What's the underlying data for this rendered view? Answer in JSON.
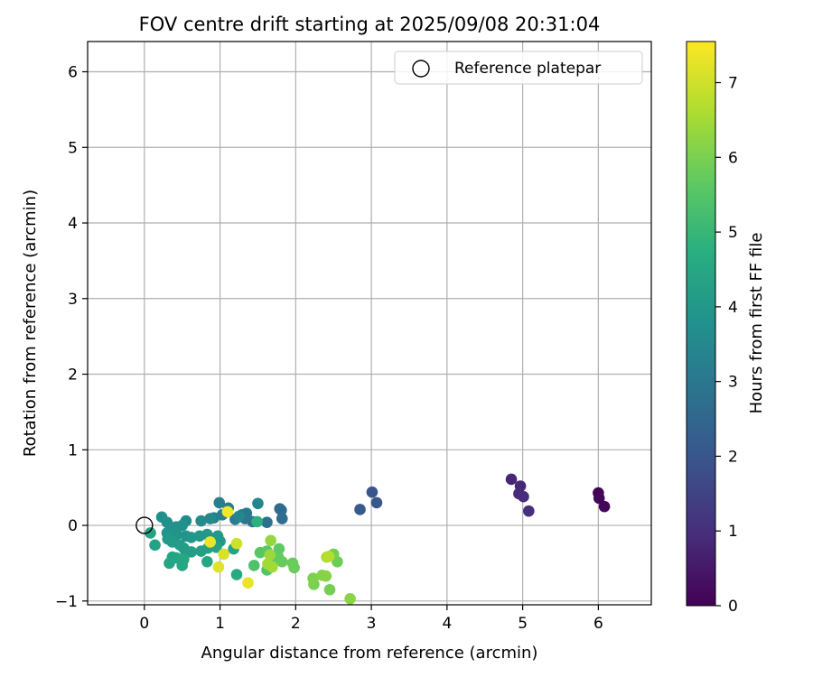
{
  "chart_data": {
    "type": "scatter",
    "title": "FOV centre drift starting at 2025/09/08 20:31:04",
    "xlabel": "Angular distance from reference (arcmin)",
    "ylabel": "Rotation from reference (arcmin)",
    "xlim": [
      -0.75,
      6.7
    ],
    "ylim": [
      -1.05,
      6.4
    ],
    "xticks": [
      0,
      1,
      2,
      3,
      4,
      5,
      6
    ],
    "yticks": [
      -1,
      0,
      1,
      2,
      3,
      4,
      5,
      6
    ],
    "xtick_labels": [
      "0",
      "1",
      "2",
      "3",
      "4",
      "5",
      "6"
    ],
    "ytick_labels": [
      "−1",
      "0",
      "1",
      "2",
      "3",
      "4",
      "5",
      "6"
    ],
    "grid": true,
    "legend": {
      "position": "top-right",
      "label": "Reference platepar"
    },
    "reference_point": {
      "x": 0,
      "y": 0
    },
    "colorbar": {
      "label": "Hours from first FF file",
      "range": [
        0,
        7.55
      ],
      "ticks": [
        0,
        1,
        2,
        3,
        4,
        5,
        6,
        7
      ],
      "tick_labels": [
        "0",
        "1",
        "2",
        "3",
        "4",
        "5",
        "6",
        "7"
      ],
      "colormap": "viridis"
    },
    "points": [
      {
        "x": 6.0,
        "y": 0.43,
        "h": 0.05
      },
      {
        "x": 6.01,
        "y": 0.36,
        "h": 0.1
      },
      {
        "x": 6.08,
        "y": 0.25,
        "h": 0.15
      },
      {
        "x": 4.85,
        "y": 0.61,
        "h": 0.8
      },
      {
        "x": 4.97,
        "y": 0.52,
        "h": 0.85
      },
      {
        "x": 4.95,
        "y": 0.42,
        "h": 0.9
      },
      {
        "x": 5.01,
        "y": 0.38,
        "h": 0.95
      },
      {
        "x": 5.08,
        "y": 0.19,
        "h": 1.0
      },
      {
        "x": 3.01,
        "y": 0.44,
        "h": 2.0
      },
      {
        "x": 3.07,
        "y": 0.3,
        "h": 2.05
      },
      {
        "x": 2.85,
        "y": 0.21,
        "h": 2.1
      },
      {
        "x": 1.79,
        "y": 0.22,
        "h": 2.6
      },
      {
        "x": 1.81,
        "y": 0.2,
        "h": 2.65
      },
      {
        "x": 1.82,
        "y": 0.09,
        "h": 2.7
      },
      {
        "x": 1.62,
        "y": 0.04,
        "h": 2.8
      },
      {
        "x": 1.43,
        "y": 0.05,
        "h": 2.9
      },
      {
        "x": 1.33,
        "y": 0.09,
        "h": 2.95
      },
      {
        "x": 1.35,
        "y": 0.16,
        "h": 3.0
      },
      {
        "x": 1.29,
        "y": 0.14,
        "h": 3.05
      },
      {
        "x": 1.2,
        "y": 0.08,
        "h": 3.1
      },
      {
        "x": 1.11,
        "y": 0.23,
        "h": 3.15
      },
      {
        "x": 0.99,
        "y": 0.3,
        "h": 3.2
      },
      {
        "x": 1.03,
        "y": 0.14,
        "h": 3.25
      },
      {
        "x": 0.92,
        "y": 0.1,
        "h": 3.3
      },
      {
        "x": 1.5,
        "y": 0.29,
        "h": 3.4
      },
      {
        "x": 1.25,
        "y": 0.12,
        "h": 3.45
      },
      {
        "x": 0.87,
        "y": 0.09,
        "h": 3.5
      },
      {
        "x": 0.75,
        "y": 0.06,
        "h": 3.55
      },
      {
        "x": 0.55,
        "y": 0.06,
        "h": 3.6
      },
      {
        "x": 0.23,
        "y": 0.11,
        "h": 3.7
      },
      {
        "x": 0.3,
        "y": 0.04,
        "h": 3.75
      },
      {
        "x": 0.42,
        "y": -0.02,
        "h": 3.8
      },
      {
        "x": 0.5,
        "y": 0.0,
        "h": 3.82
      },
      {
        "x": 0.37,
        "y": -0.05,
        "h": 3.85
      },
      {
        "x": 0.3,
        "y": -0.1,
        "h": 3.88
      },
      {
        "x": 0.43,
        "y": -0.12,
        "h": 3.9
      },
      {
        "x": 0.55,
        "y": -0.14,
        "h": 3.92
      },
      {
        "x": 0.62,
        "y": -0.16,
        "h": 3.95
      },
      {
        "x": 0.73,
        "y": -0.14,
        "h": 3.98
      },
      {
        "x": 0.83,
        "y": -0.12,
        "h": 4.0
      },
      {
        "x": 0.97,
        "y": -0.14,
        "h": 4.02
      },
      {
        "x": 1.0,
        "y": -0.21,
        "h": 4.05
      },
      {
        "x": 0.31,
        "y": -0.18,
        "h": 4.08
      },
      {
        "x": 0.37,
        "y": -0.22,
        "h": 4.1
      },
      {
        "x": 0.47,
        "y": -0.26,
        "h": 4.12
      },
      {
        "x": 0.52,
        "y": -0.3,
        "h": 4.15
      },
      {
        "x": 0.55,
        "y": -0.36,
        "h": 4.18
      },
      {
        "x": 0.62,
        "y": -0.35,
        "h": 4.2
      },
      {
        "x": 0.75,
        "y": -0.34,
        "h": 4.22
      },
      {
        "x": 0.84,
        "y": -0.3,
        "h": 4.25
      },
      {
        "x": 0.95,
        "y": -0.29,
        "h": 4.28
      },
      {
        "x": 1.18,
        "y": -0.31,
        "h": 4.3
      },
      {
        "x": 0.14,
        "y": -0.26,
        "h": 4.32
      },
      {
        "x": 0.08,
        "y": -0.1,
        "h": 4.35
      },
      {
        "x": 0.37,
        "y": -0.42,
        "h": 4.38
      },
      {
        "x": 0.33,
        "y": -0.5,
        "h": 4.4
      },
      {
        "x": 0.42,
        "y": -0.43,
        "h": 4.42
      },
      {
        "x": 0.52,
        "y": -0.45,
        "h": 4.45
      },
      {
        "x": 0.5,
        "y": -0.53,
        "h": 4.48
      },
      {
        "x": 0.83,
        "y": -0.48,
        "h": 4.5
      },
      {
        "x": 1.22,
        "y": -0.65,
        "h": 4.55
      },
      {
        "x": 1.49,
        "y": 0.05,
        "h": 4.8
      },
      {
        "x": 1.45,
        "y": -0.53,
        "h": 5.4
      },
      {
        "x": 1.62,
        "y": -0.59,
        "h": 5.5
      },
      {
        "x": 1.53,
        "y": -0.36,
        "h": 5.55
      },
      {
        "x": 1.62,
        "y": -0.34,
        "h": 5.6
      },
      {
        "x": 1.78,
        "y": -0.31,
        "h": 5.65
      },
      {
        "x": 1.77,
        "y": -0.42,
        "h": 5.7
      },
      {
        "x": 1.7,
        "y": -0.46,
        "h": 5.72
      },
      {
        "x": 1.82,
        "y": -0.48,
        "h": 5.75
      },
      {
        "x": 1.96,
        "y": -0.5,
        "h": 5.78
      },
      {
        "x": 1.98,
        "y": -0.56,
        "h": 5.8
      },
      {
        "x": 2.55,
        "y": -0.48,
        "h": 5.85
      },
      {
        "x": 2.5,
        "y": -0.38,
        "h": 5.9
      },
      {
        "x": 2.45,
        "y": -0.85,
        "h": 5.95
      },
      {
        "x": 2.24,
        "y": -0.78,
        "h": 6.0
      },
      {
        "x": 2.23,
        "y": -0.7,
        "h": 6.05
      },
      {
        "x": 2.35,
        "y": -0.66,
        "h": 6.1
      },
      {
        "x": 2.4,
        "y": -0.67,
        "h": 6.15
      },
      {
        "x": 2.72,
        "y": -0.97,
        "h": 6.2
      },
      {
        "x": 1.67,
        "y": -0.2,
        "h": 6.3
      },
      {
        "x": 1.66,
        "y": -0.39,
        "h": 6.4
      },
      {
        "x": 1.63,
        "y": -0.51,
        "h": 6.45
      },
      {
        "x": 1.69,
        "y": -0.55,
        "h": 6.5
      },
      {
        "x": 2.41,
        "y": -0.42,
        "h": 6.6
      },
      {
        "x": 2.44,
        "y": -0.41,
        "h": 6.7
      },
      {
        "x": 1.22,
        "y": -0.24,
        "h": 7.0
      },
      {
        "x": 1.05,
        "y": -0.38,
        "h": 7.1
      },
      {
        "x": 0.98,
        "y": -0.55,
        "h": 7.2
      },
      {
        "x": 1.37,
        "y": -0.76,
        "h": 7.3
      },
      {
        "x": 0.87,
        "y": -0.22,
        "h": 7.35
      },
      {
        "x": 1.1,
        "y": 0.18,
        "h": 7.45
      }
    ]
  }
}
